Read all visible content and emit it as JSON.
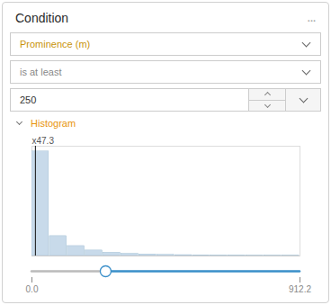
{
  "chart_data": {
    "type": "histogram",
    "title": "Condition",
    "bins": [
      0,
      60.81333333333333,
      121.62666666666667,
      182.44,
      243.25333333333333,
      304.06666666666666,
      364.88,
      425.6933333333333,
      486.50666666666666,
      547.32,
      608.1333333333333,
      668.9466666666667,
      729.76,
      790.5733333333333,
      851.3866666666667,
      912.2
    ],
    "values": [
      47.3,
      9.0,
      4.5,
      2.5,
      1.5,
      1.0,
      0.7,
      0.5,
      0.4,
      0.3,
      0.2,
      0.2,
      0.1,
      0.1,
      0.1
    ],
    "color": "#c8daea",
    "y_label": "x47.3",
    "xlim": [
      0,
      912.2
    ],
    "xticks": [
      {
        "value": 0,
        "label": "0.0"
      },
      {
        "value": 912.2,
        "label": "912.2"
      }
    ],
    "ylim": [
      0,
      49.665
    ],
    "yticks": [],
    "tick_labels": "x",
    "grid": false,
    "annotations": [
      {
        "type": "menu",
        "text": "..."
      },
      {
        "type": "dropdown",
        "text": "Prominence (m)",
        "color": "#c8940a"
      },
      {
        "type": "dropdown",
        "text": "is at least",
        "color": "#888888"
      },
      {
        "type": "input",
        "text": "250"
      },
      {
        "type": "section",
        "text": "Histogram",
        "color": "#e8940a"
      },
      {
        "type": "vline",
        "x": 11.8586
      },
      {
        "type": "slider",
        "x": 250.855,
        "color": "#3a8fc9"
      }
    ]
  }
}
